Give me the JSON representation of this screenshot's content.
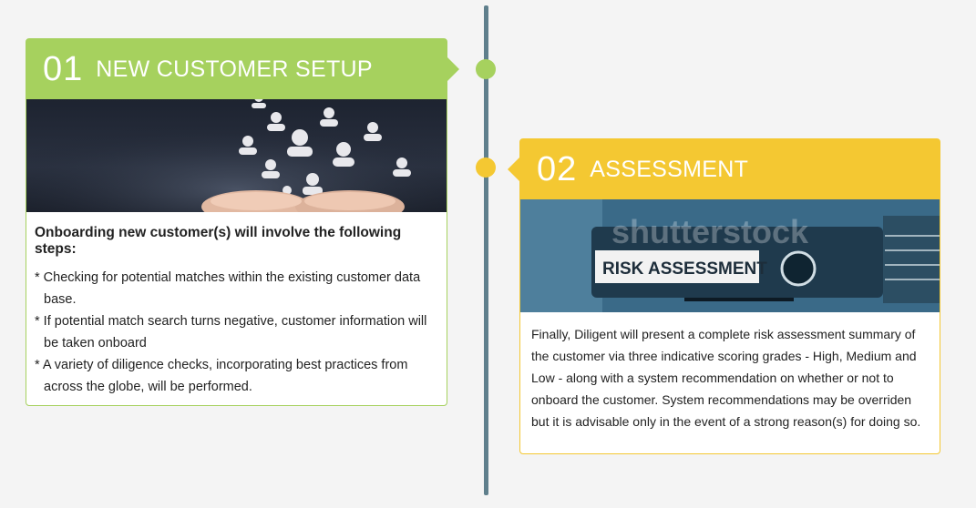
{
  "steps": [
    {
      "number": "01",
      "title": "NEW CUSTOMER SETUP",
      "lead": "Onboarding new customer(s) will involve the following steps:",
      "items": [
        "* Checking for potential matches within the existing customer data base.",
        "* If potential match search turns negative, customer information will be taken onboard",
        "* A variety of diligence checks, incorporating best practices from across the globe, will be performed."
      ],
      "color": "#a6d15e"
    },
    {
      "number": "02",
      "title": "ASSESSMENT",
      "image_label": "RISK ASSESSMENT",
      "watermark": "shutterstock",
      "text": "Finally, Diligent will present a complete risk assessment summary of the customer via three indicative scoring grades - High, Medium and Low - along with a system recommendation on whether or not to onboard the customer. System recommendations may be overriden but it is advisable only in the event of a strong reason(s) for doing so.",
      "color": "#f4c832"
    }
  ],
  "timeline_color": "#5f7f8c"
}
